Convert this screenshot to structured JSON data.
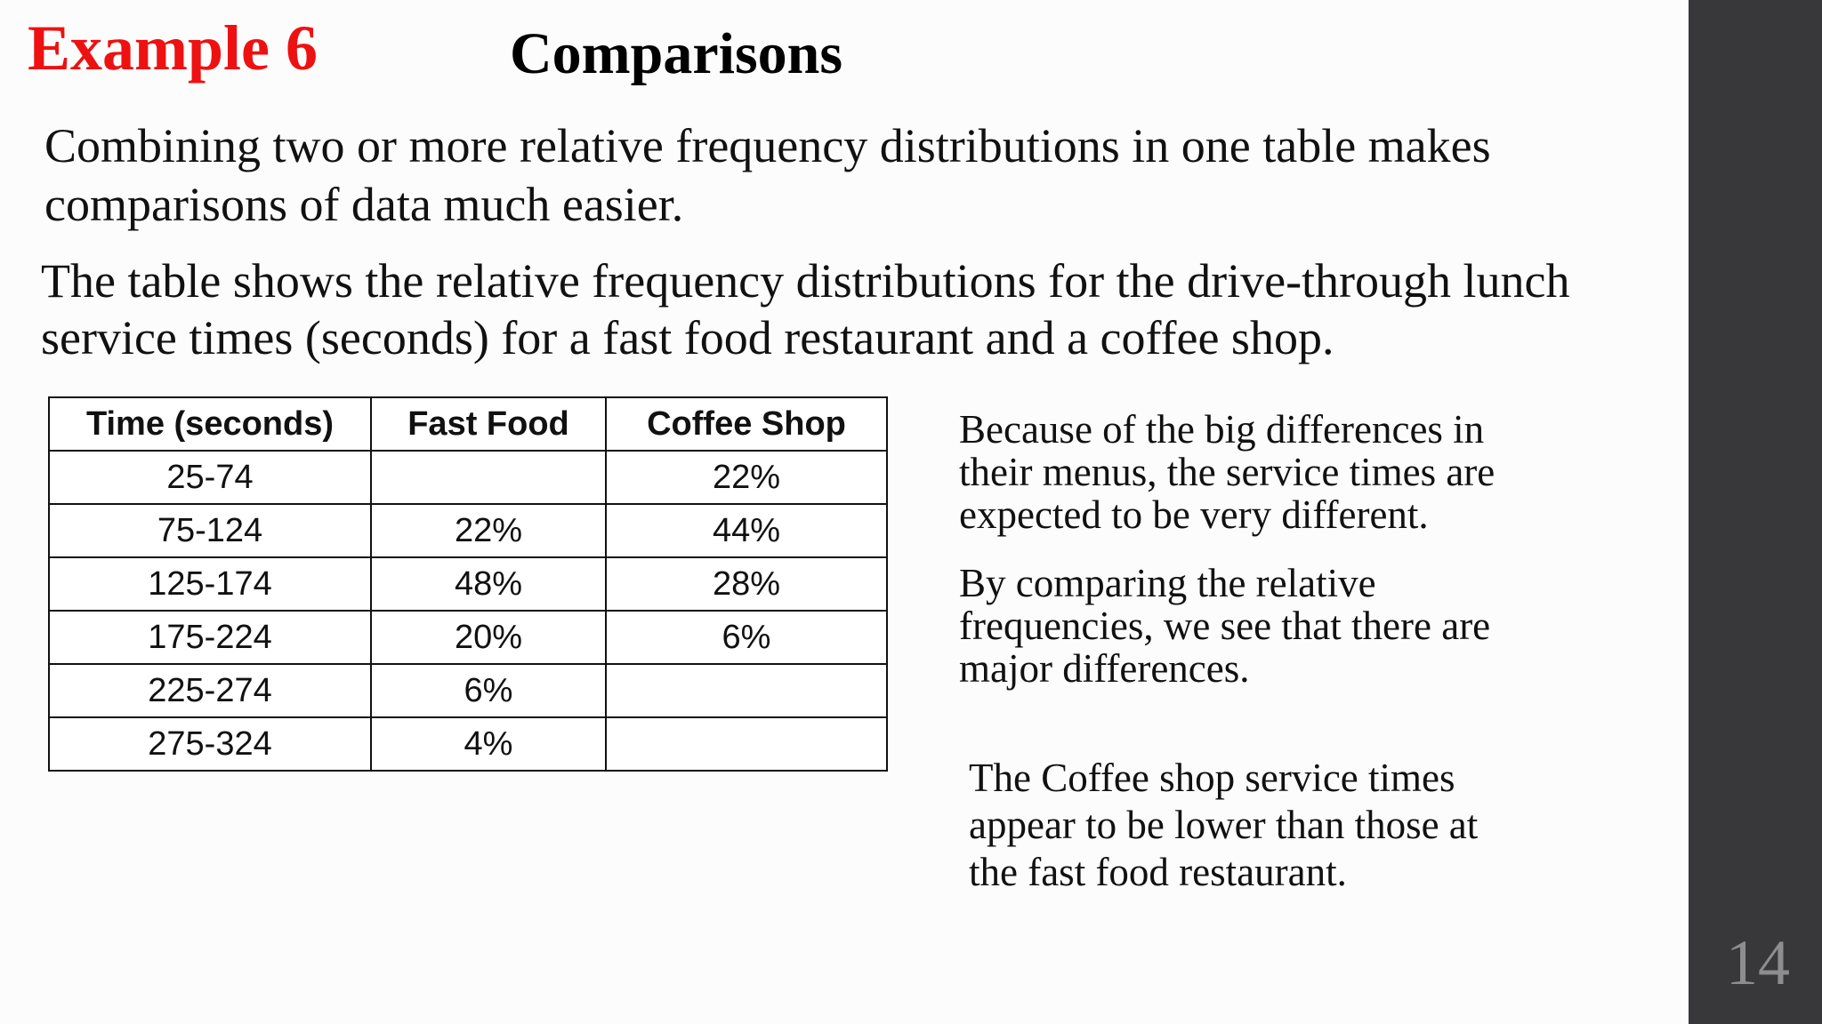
{
  "header": {
    "example_label": "Example 6",
    "title": "Comparisons"
  },
  "body": {
    "intro_lines": [
      "Combining two or more relative frequency distributions in one table makes",
      "comparisons of data much easier."
    ],
    "setup_lines": [
      "The table shows the relative frequency distributions for the drive-through lunch",
      "service times (seconds) for a fast food restaurant and a coffee shop."
    ]
  },
  "table": {
    "headers": [
      "Time (seconds)",
      "Fast Food",
      "Coffee Shop"
    ],
    "rows": [
      [
        "25-74",
        "",
        "22%"
      ],
      [
        "75-124",
        "22%",
        "44%"
      ],
      [
        "125-174",
        "48%",
        "28%"
      ],
      [
        "175-224",
        "20%",
        "6%"
      ],
      [
        "225-274",
        "6%",
        ""
      ],
      [
        "275-324",
        "4%",
        ""
      ]
    ]
  },
  "notes": {
    "note1_lines": [
      "Because of the big differences in",
      "their menus, the service times are",
      "expected to be very different."
    ],
    "note2_lines": [
      "By comparing the relative",
      "frequencies, we see that there are",
      "major differences."
    ],
    "note3_lines": [
      "The Coffee shop service times",
      "appear to be lower than those at",
      "the fast food restaurant."
    ]
  },
  "footer": {
    "page_number": "14"
  },
  "colors": {
    "accent": "#ee1111",
    "sidebar": "#38383a",
    "background": "#fcfcfc"
  }
}
